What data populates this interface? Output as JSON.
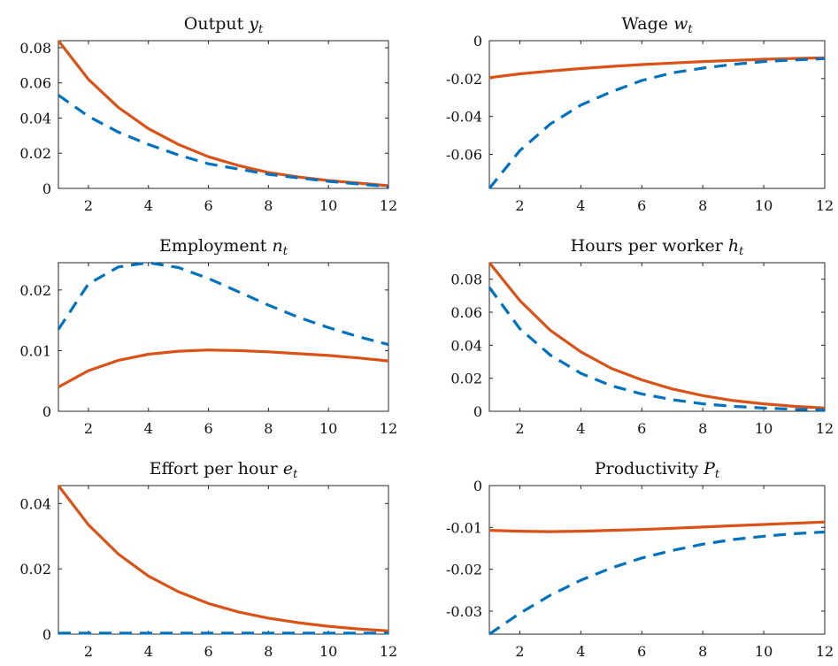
{
  "chart_data": [
    {
      "type": "line",
      "title": "Output",
      "title_symbol": "y",
      "title_sub": "t",
      "x": [
        1,
        2,
        3,
        4,
        5,
        6,
        7,
        8,
        9,
        10,
        11,
        12
      ],
      "xlim": [
        1,
        12
      ],
      "xticks": [
        2,
        4,
        6,
        8,
        10,
        12
      ],
      "ylim": [
        0,
        0.084
      ],
      "yticks": [
        0,
        0.02,
        0.04,
        0.06,
        0.08
      ],
      "ytick_labels": [
        "0",
        "0.02",
        "0.04",
        "0.06",
        "0.08"
      ],
      "zero_line": true,
      "series": [
        {
          "style": "solid",
          "color": "#D95319",
          "values": [
            0.084,
            0.062,
            0.046,
            0.034,
            0.025,
            0.018,
            0.013,
            0.009,
            0.0065,
            0.0045,
            0.003,
            0.0015
          ]
        },
        {
          "style": "dashed",
          "color": "#0072BD",
          "values": [
            0.053,
            0.041,
            0.032,
            0.025,
            0.019,
            0.014,
            0.011,
            0.008,
            0.006,
            0.004,
            0.0025,
            0.001
          ]
        }
      ]
    },
    {
      "type": "line",
      "title": "Wage",
      "title_symbol": "w",
      "title_sub": "t",
      "x": [
        1,
        2,
        3,
        4,
        5,
        6,
        7,
        8,
        9,
        10,
        11,
        12
      ],
      "xlim": [
        1,
        12
      ],
      "xticks": [
        2,
        4,
        6,
        8,
        10,
        12
      ],
      "ylim": [
        -0.078,
        0
      ],
      "yticks": [
        -0.06,
        -0.04,
        -0.02,
        0
      ],
      "ytick_labels": [
        "-0.06",
        "-0.04",
        "-0.02",
        "0"
      ],
      "zero_line": true,
      "series": [
        {
          "style": "solid",
          "color": "#D95319",
          "values": [
            -0.0195,
            -0.0175,
            -0.016,
            -0.0147,
            -0.0136,
            -0.0126,
            -0.0118,
            -0.011,
            -0.0104,
            -0.0098,
            -0.0094,
            -0.009
          ]
        },
        {
          "style": "dashed",
          "color": "#0072BD",
          "values": [
            -0.078,
            -0.058,
            -0.044,
            -0.034,
            -0.027,
            -0.021,
            -0.017,
            -0.0145,
            -0.0125,
            -0.011,
            -0.0102,
            -0.0095
          ]
        }
      ]
    },
    {
      "type": "line",
      "title": "Employment",
      "title_symbol": "n",
      "title_sub": "t",
      "x": [
        1,
        2,
        3,
        4,
        5,
        6,
        7,
        8,
        9,
        10,
        11,
        12
      ],
      "xlim": [
        1,
        12
      ],
      "xticks": [
        2,
        4,
        6,
        8,
        10,
        12
      ],
      "ylim": [
        0,
        0.0245
      ],
      "yticks": [
        0,
        0.01,
        0.02
      ],
      "ytick_labels": [
        "0",
        "0.01",
        "0.02"
      ],
      "zero_line": true,
      "series": [
        {
          "style": "solid",
          "color": "#D95319",
          "values": [
            0.004,
            0.0067,
            0.0084,
            0.0094,
            0.0099,
            0.0101,
            0.01,
            0.0098,
            0.0095,
            0.0092,
            0.0088,
            0.0083
          ]
        },
        {
          "style": "dashed",
          "color": "#0072BD",
          "values": [
            0.0135,
            0.021,
            0.0238,
            0.0245,
            0.0237,
            0.0219,
            0.0197,
            0.0175,
            0.0155,
            0.0138,
            0.0123,
            0.011
          ]
        }
      ]
    },
    {
      "type": "line",
      "title": "Hours per worker",
      "title_symbol": "h",
      "title_sub": "t",
      "x": [
        1,
        2,
        3,
        4,
        5,
        6,
        7,
        8,
        9,
        10,
        11,
        12
      ],
      "xlim": [
        1,
        12
      ],
      "xticks": [
        2,
        4,
        6,
        8,
        10,
        12
      ],
      "ylim": [
        0,
        0.09
      ],
      "yticks": [
        0,
        0.02,
        0.04,
        0.06,
        0.08
      ],
      "ytick_labels": [
        "0",
        "0.02",
        "0.04",
        "0.06",
        "0.08"
      ],
      "zero_line": true,
      "series": [
        {
          "style": "solid",
          "color": "#D95319",
          "values": [
            0.09,
            0.067,
            0.049,
            0.036,
            0.026,
            0.019,
            0.0135,
            0.0095,
            0.0065,
            0.0045,
            0.003,
            0.002
          ]
        },
        {
          "style": "dashed",
          "color": "#0072BD",
          "values": [
            0.075,
            0.05,
            0.034,
            0.023,
            0.0155,
            0.0105,
            0.007,
            0.0045,
            0.003,
            0.002,
            0.0012,
            0.0008
          ]
        }
      ]
    },
    {
      "type": "line",
      "title": "Effort per hour",
      "title_symbol": "e",
      "title_sub": "t",
      "x": [
        1,
        2,
        3,
        4,
        5,
        6,
        7,
        8,
        9,
        10,
        11,
        12
      ],
      "xlim": [
        1,
        12
      ],
      "xticks": [
        2,
        4,
        6,
        8,
        10,
        12
      ],
      "ylim": [
        0,
        0.0455
      ],
      "yticks": [
        0,
        0.02,
        0.04
      ],
      "ytick_labels": [
        "0",
        "0.02",
        "0.04"
      ],
      "zero_line": true,
      "series": [
        {
          "style": "solid",
          "color": "#D95319",
          "values": [
            0.0455,
            0.0335,
            0.0245,
            0.0178,
            0.013,
            0.0094,
            0.0068,
            0.0049,
            0.0035,
            0.0024,
            0.0016,
            0.001
          ]
        },
        {
          "style": "dashed",
          "color": "#0072BD",
          "values": [
            0.0003,
            0.0003,
            0.0003,
            0.0003,
            0.0003,
            0.0003,
            0.0003,
            0.0003,
            0.0003,
            0.0003,
            0.0003,
            0.0003
          ]
        }
      ]
    },
    {
      "type": "line",
      "title": "Productivity",
      "title_symbol": "P",
      "title_sub": "t",
      "x": [
        1,
        2,
        3,
        4,
        5,
        6,
        7,
        8,
        9,
        10,
        11,
        12
      ],
      "xlim": [
        1,
        12
      ],
      "xticks": [
        2,
        4,
        6,
        8,
        10,
        12
      ],
      "ylim": [
        -0.0355,
        0
      ],
      "yticks": [
        -0.03,
        -0.02,
        -0.01,
        0
      ],
      "ytick_labels": [
        "-0.03",
        "-0.02",
        "-0.01",
        "0"
      ],
      "zero_line": true,
      "series": [
        {
          "style": "solid",
          "color": "#D95319",
          "values": [
            -0.0107,
            -0.0109,
            -0.011,
            -0.0109,
            -0.0107,
            -0.0105,
            -0.0102,
            -0.0099,
            -0.0096,
            -0.0093,
            -0.009,
            -0.0087
          ]
        },
        {
          "style": "dashed",
          "color": "#0072BD",
          "values": [
            -0.0355,
            -0.0305,
            -0.0262,
            -0.0226,
            -0.0197,
            -0.0173,
            -0.0155,
            -0.014,
            -0.0129,
            -0.0121,
            -0.0115,
            -0.0111
          ]
        }
      ]
    }
  ]
}
